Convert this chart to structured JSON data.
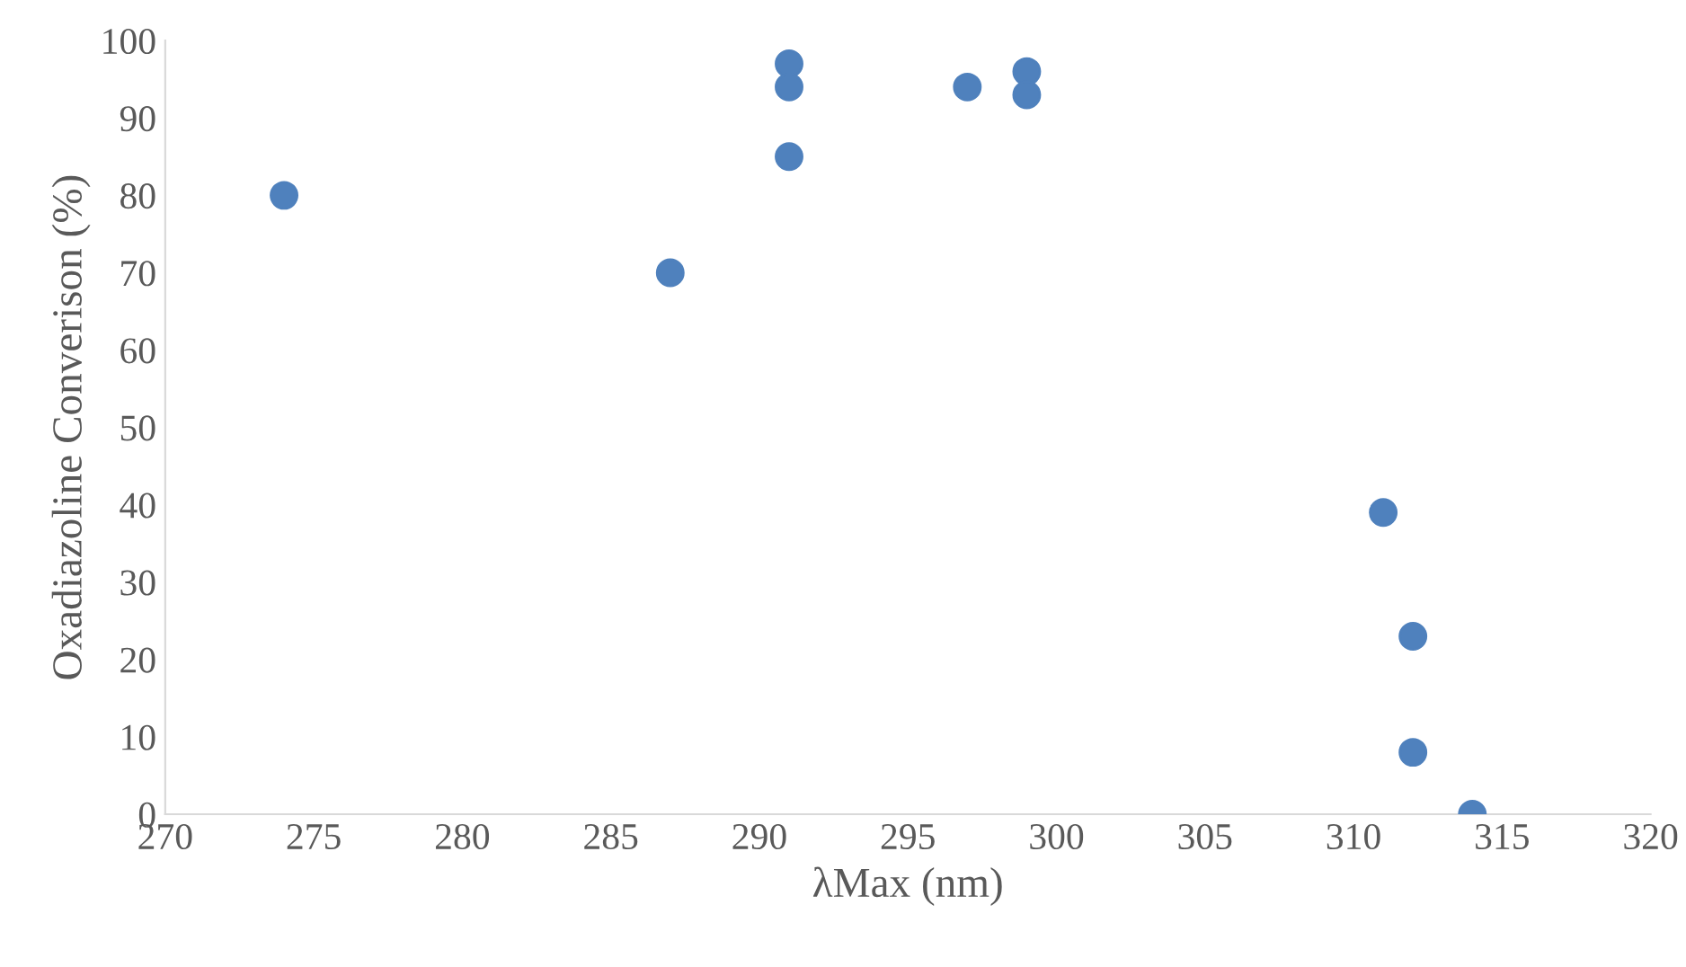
{
  "chart_data": {
    "type": "scatter",
    "xlabel": "λMax (nm)",
    "ylabel": "Oxadiazoline Converison (%)",
    "x": [
      274,
      287,
      291,
      291,
      291,
      297,
      299,
      299,
      311,
      312,
      312,
      314
    ],
    "series": [
      {
        "color": "#4f81bd",
        "values": [
          80,
          70,
          97,
          94,
          85,
          94,
          96,
          93,
          39,
          23,
          8,
          0
        ]
      }
    ],
    "xlim": [
      270,
      320
    ],
    "xticks": [
      270,
      275,
      280,
      285,
      290,
      295,
      300,
      305,
      310,
      315,
      320
    ],
    "ylim": [
      0,
      100
    ],
    "yticks": [
      0,
      10,
      20,
      30,
      40,
      50,
      60,
      70,
      80,
      90,
      100
    ],
    "grid": false,
    "legend": false,
    "marker": "circle"
  }
}
